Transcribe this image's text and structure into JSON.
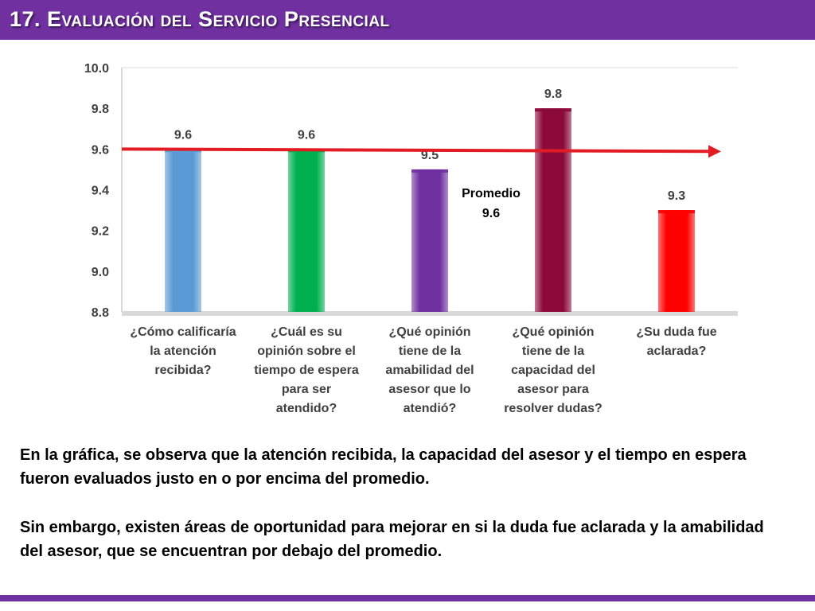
{
  "header": {
    "title": "17. Evaluación del Servicio Presencial"
  },
  "chart_data": {
    "type": "bar",
    "categories": [
      "¿Cómo calificaría la atención recibida?",
      "¿Cuál es su opinión sobre el tiempo de espera para ser atendido?",
      "¿Qué opinión tiene de la amabilidad del asesor que lo atendió?",
      "¿Qué opinión tiene de la capacidad del asesor para resolver dudas?",
      "¿Su duda fue aclarada?"
    ],
    "category_lines": [
      [
        "¿Cómo calificaría",
        "la atención",
        "recibida?"
      ],
      [
        "¿Cuál es su",
        "opinión sobre el",
        "tiempo de espera",
        "para ser",
        "atendido?"
      ],
      [
        "¿Qué opinión",
        "tiene de la",
        "amabilidad del",
        "asesor que lo",
        "atendió?"
      ],
      [
        "¿Qué opinión",
        "tiene de la",
        "capacidad del",
        "asesor para",
        "resolver dudas?"
      ],
      [
        "¿Su duda fue",
        "aclarada?"
      ]
    ],
    "values": [
      9.6,
      9.6,
      9.5,
      9.8,
      9.3
    ],
    "value_labels": [
      "9.6",
      "9.6",
      "9.5",
      "9.8",
      "9.3"
    ],
    "bar_colors": [
      "#5b9bd5",
      "#00b050",
      "#7030a0",
      "#8b0a3a",
      "#ff0000"
    ],
    "ylim": [
      8.8,
      10.0
    ],
    "yticks": [
      "8.8",
      "9.0",
      "9.2",
      "9.4",
      "9.6",
      "9.8",
      "10.0"
    ],
    "average": {
      "value": 9.6,
      "label": "Promedio",
      "value_label": "9.6",
      "color": "#e31b23"
    },
    "grid": false,
    "legend": "none",
    "xlabel": "",
    "ylabel": ""
  },
  "analysis": {
    "paragraph_1": "En la gráfica, se observa que la atención recibida, la capacidad del asesor y el tiempo en espera fueron evaluados justo en o por encima del promedio.",
    "paragraph_2": "Sin embargo, existen áreas de oportunidad para mejorar en si la duda fue aclarada y la amabilidad del asesor, que se encuentran por debajo del promedio."
  },
  "colors": {
    "accent": "#7030a0"
  }
}
